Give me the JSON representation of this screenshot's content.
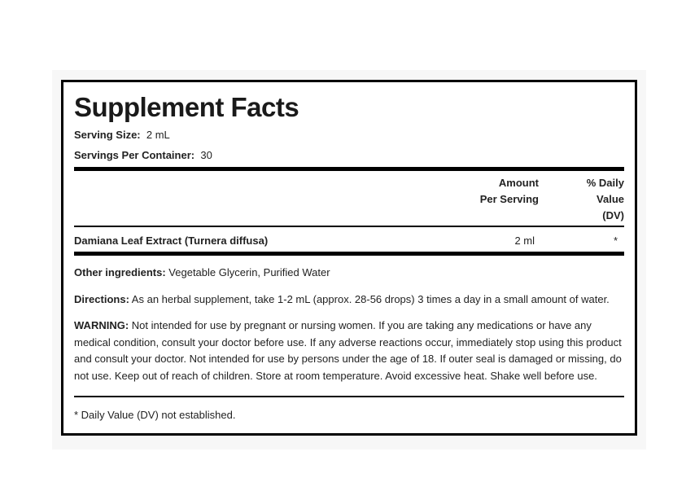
{
  "title": "Supplement Facts",
  "serving_size": {
    "label": "Serving Size:",
    "value": "2 mL"
  },
  "servings_per_container": {
    "label": "Servings Per Container:",
    "value": "30"
  },
  "table": {
    "headers": {
      "amount_line1": "Amount",
      "amount_line2": "Per Serving",
      "dv_line1": "% Daily",
      "dv_line2": "Value",
      "dv_line3": "(DV)"
    },
    "rows": [
      {
        "name": "Damiana Leaf Extract (Turnera diffusa)",
        "amount": "2 ml",
        "dv": "*"
      }
    ]
  },
  "other_ingredients": {
    "label": "Other ingredients:",
    "text": " Vegetable Glycerin, Purified Water"
  },
  "directions": {
    "label": "Directions:",
    "text": " As an herbal supplement, take 1-2 mL (approx. 28-56 drops) 3 times a day in a small amount of water."
  },
  "warning": {
    "label": "WARNING:",
    "text": " Not intended for use by pregnant or nursing women. If you are taking any medications or have any medical condition, consult your doctor before use. If any adverse reactions occur, immediately stop using this product and consult your doctor. Not intended for use by persons under the age of 18. If outer seal is damaged or missing, do not use. Keep out of reach of children. Store at room temperature. Avoid excessive heat. Shake well before use."
  },
  "footnote": "* Daily Value (DV) not established."
}
